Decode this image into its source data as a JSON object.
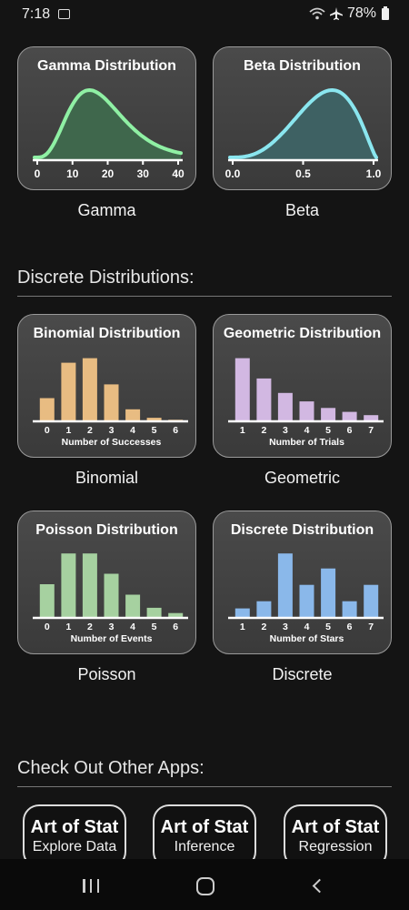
{
  "status": {
    "time": "7:18",
    "battery": "78%"
  },
  "continuous": [
    {
      "title": "Gamma Distribution",
      "caption": "Gamma",
      "color": "#8ff0a4",
      "fill": "#3f6b4e",
      "ticks": [
        "0",
        "10",
        "20",
        "30",
        "40"
      ],
      "shape": "gamma"
    },
    {
      "title": "Beta Distribution",
      "caption": "Beta",
      "color": "#8ae6ef",
      "fill": "#3e6567",
      "ticks": [
        "0.0",
        "0.5",
        "1.0"
      ],
      "shape": "beta"
    }
  ],
  "discrete_section": {
    "title": "Discrete Distributions:"
  },
  "discrete": [
    {
      "title": "Binomial Distribution",
      "caption": "Binomial",
      "color": "#e8bc82",
      "ticks": [
        "0",
        "1",
        "2",
        "3",
        "4",
        "5",
        "6"
      ],
      "xlabel": "Number of Successes",
      "values": [
        0.34,
        0.88,
        0.95,
        0.55,
        0.17,
        0.04,
        0.01
      ]
    },
    {
      "title": "Geometric Distribution",
      "caption": "Geometric",
      "color": "#d2b8e2",
      "ticks": [
        "1",
        "2",
        "3",
        "4",
        "5",
        "6",
        "7"
      ],
      "xlabel": "Number of Trials",
      "values": [
        0.95,
        0.64,
        0.42,
        0.29,
        0.19,
        0.13,
        0.08
      ]
    },
    {
      "title": "Poisson Distribution",
      "caption": "Poisson",
      "color": "#a6d1a0",
      "ticks": [
        "0",
        "1",
        "2",
        "3",
        "4",
        "5",
        "6"
      ],
      "xlabel": "Number of Events",
      "values": [
        0.5,
        0.97,
        0.97,
        0.66,
        0.34,
        0.14,
        0.06
      ]
    },
    {
      "title": "Discrete Distribution",
      "caption": "Discrete",
      "color": "#8ab8ea",
      "ticks": [
        "1",
        "2",
        "3",
        "4",
        "5",
        "6",
        "7"
      ],
      "xlabel": "Number of Stars",
      "values": [
        0.13,
        0.24,
        0.97,
        0.49,
        0.74,
        0.24,
        0.49
      ]
    }
  ],
  "apps_section": {
    "title": "Check Out Other Apps:"
  },
  "apps": [
    {
      "name": "Art of Stat",
      "sub": "Explore Data"
    },
    {
      "name": "Art of Stat",
      "sub": "Inference"
    },
    {
      "name": "Art of Stat",
      "sub": "Regression"
    }
  ]
}
